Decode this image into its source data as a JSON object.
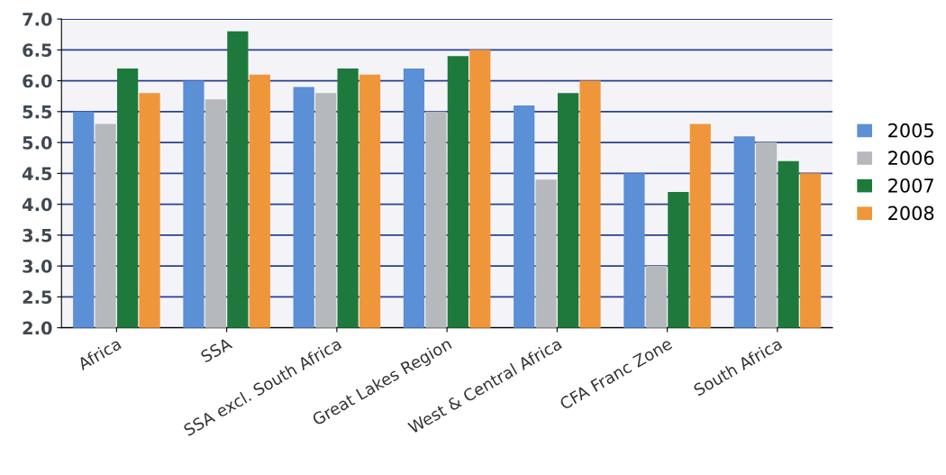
{
  "chart_data": {
    "type": "bar",
    "categories": [
      "Africa",
      "SSA",
      "SSA excl. South Africa",
      "Great Lakes Region",
      "West & Central Africa",
      "CFA Franc Zone",
      "South Africa"
    ],
    "series": [
      {
        "name": "2005",
        "color": "#5b8fd6",
        "values": [
          5.5,
          6.0,
          5.9,
          6.2,
          5.6,
          4.5,
          5.1
        ]
      },
      {
        "name": "2006",
        "color": "#b5b8bc",
        "values": [
          5.3,
          5.7,
          5.8,
          5.5,
          4.4,
          3.0,
          5.0
        ]
      },
      {
        "name": "2007",
        "color": "#1e7a3c",
        "values": [
          6.2,
          6.8,
          6.2,
          6.4,
          5.8,
          4.2,
          4.7
        ]
      },
      {
        "name": "2008",
        "color": "#f0963a",
        "values": [
          5.8,
          6.1,
          6.1,
          6.5,
          6.0,
          5.3,
          4.5
        ]
      }
    ],
    "ylim": [
      2.0,
      7.0
    ],
    "yticks": [
      {
        "value": 2.0,
        "label": "2.0"
      },
      {
        "value": 2.5,
        "label": "2.5"
      },
      {
        "value": 3.0,
        "label": "3.0"
      },
      {
        "value": 3.5,
        "label": "3.5"
      },
      {
        "value": 4.0,
        "label": "4.0"
      },
      {
        "value": 4.5,
        "label": "4.5"
      },
      {
        "value": 5.0,
        "label": "5.0"
      },
      {
        "value": 5.5,
        "label": "5.5"
      },
      {
        "value": 6.0,
        "label": "6.0"
      },
      {
        "value": 6.5,
        "label": "6.5"
      },
      {
        "value": 7.0,
        "label": "7.0"
      }
    ],
    "grid": "y",
    "legend": "right"
  }
}
